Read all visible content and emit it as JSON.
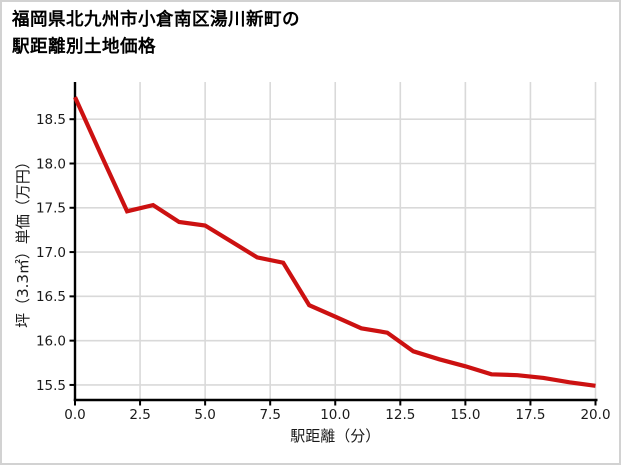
{
  "window": {
    "background_color": "#ffffff",
    "border_color": "#d2d2d2"
  },
  "chart_data": {
    "type": "line",
    "title": "福岡県北九州市小倉南区湯川新町の駅距離別土地価格",
    "title_lines": [
      "福岡県北九州市小倉南区湯川新町の",
      "駅距離別土地価格"
    ],
    "xlabel": "駅距離（分）",
    "ylabel": "坪（3.3㎡）単価（万円）",
    "x": [
      0,
      1,
      2,
      3,
      4,
      5,
      6,
      7,
      8,
      9,
      10,
      11,
      12,
      13,
      14,
      15,
      16,
      17,
      18,
      19,
      20
    ],
    "y": [
      18.75,
      18.1,
      17.46,
      17.53,
      17.34,
      17.3,
      17.12,
      16.94,
      16.88,
      16.4,
      16.27,
      16.14,
      16.09,
      15.88,
      15.79,
      15.71,
      15.62,
      15.61,
      15.58,
      15.53,
      15.49
    ],
    "xlim": [
      0,
      20
    ],
    "ylim": [
      15.33,
      18.92
    ],
    "xtick_values": [
      0,
      2.5,
      5,
      7.5,
      10,
      12.5,
      15,
      17.5,
      20
    ],
    "xtick_labels": [
      "0.0",
      "2.5",
      "5.0",
      "7.5",
      "10.0",
      "12.5",
      "15.0",
      "17.5",
      "20.0"
    ],
    "ytick_values": [
      15.5,
      16.0,
      16.5,
      17.0,
      17.5,
      18.0,
      18.5
    ],
    "ytick_labels": [
      "15.5",
      "16.0",
      "16.5",
      "17.0",
      "17.5",
      "18.0",
      "18.5"
    ],
    "grid": true,
    "legend": "none",
    "line_color": "#cc1111",
    "grid_color": "#d9d9d9",
    "axis_color": "#000000",
    "tick_label_color": "#1a1a1a"
  }
}
